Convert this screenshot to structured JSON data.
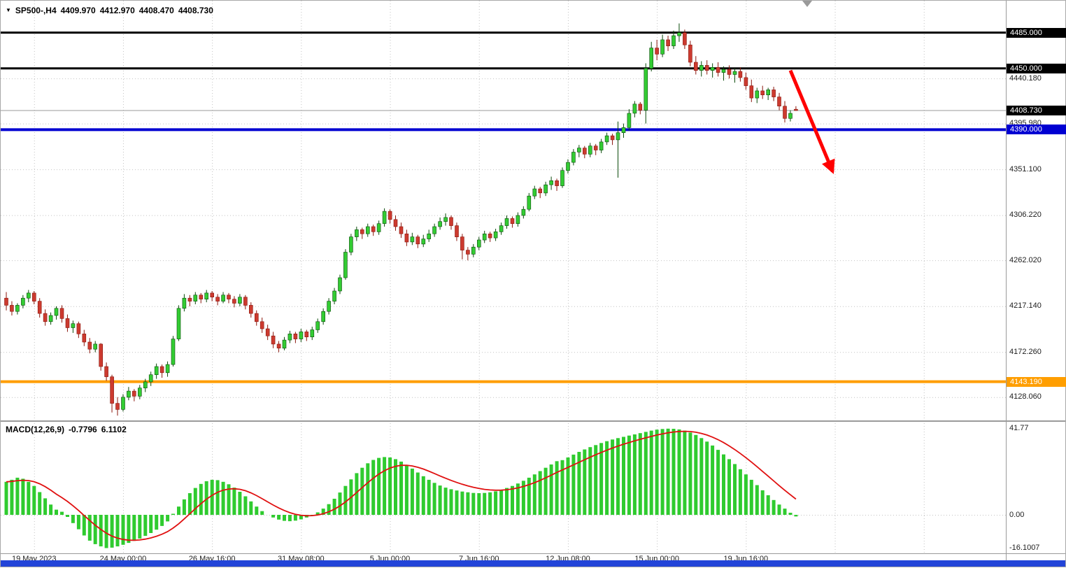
{
  "title": {
    "dropdown_icon": "▼",
    "symbol": "SP500-,H4",
    "open": "4409.970",
    "high": "4412.970",
    "low": "4408.470",
    "close": "4408.730"
  },
  "macd_header": {
    "name": "MACD(12,26,9)",
    "value": "-0.7796",
    "signal_value": "6.1102"
  },
  "colors": {
    "bull_fill": "#33CC33",
    "bull_stroke": "#0a4a0a",
    "bear_fill": "#CC3A2F",
    "bear_stroke": "#8b170e",
    "macd_hist": "#2FCB2F",
    "macd_signal": "#E01010",
    "grid": "#c2c2c2",
    "arrow": "#FF0000",
    "current_price_line": "#999999",
    "taskbar": "#2244D8",
    "axis_text": "#1c1c1c"
  },
  "chart_data": {
    "type": "candlestick",
    "symbol": "SP500-",
    "timeframe": "H4",
    "title": "SP500-,H4 4409.970 4412.970 4408.470 4408.730",
    "current_price": 4408.73,
    "levels": [
      {
        "price": 4485.0,
        "color": "#000000",
        "width": 3
      },
      {
        "price": 4450.0,
        "color": "#000000",
        "width": 3
      },
      {
        "price": 4390.0,
        "color": "#0000D2",
        "width": 4
      },
      {
        "price": 4143.19,
        "color": "#FF9E00",
        "width": 4
      }
    ],
    "price_axis": {
      "grid_labels": [
        {
          "label": "4440.180",
          "price": 4440.18
        },
        {
          "label": "4395.980",
          "price": 4395.98
        },
        {
          "label": "4351.100",
          "price": 4351.1
        },
        {
          "label": "4306.220",
          "price": 4306.22
        },
        {
          "label": "4262.020",
          "price": 4262.02
        },
        {
          "label": "4217.140",
          "price": 4217.14
        },
        {
          "label": "4172.260",
          "price": 4172.26
        },
        {
          "label": "4128.060",
          "price": 4128.06
        }
      ],
      "tags": [
        {
          "label": "4485.000",
          "price": 4485.0,
          "bg": "#000000"
        },
        {
          "label": "4450.000",
          "price": 4450.0,
          "bg": "#000000"
        },
        {
          "label": "4408.730",
          "price": 4408.73,
          "bg": "#000000"
        },
        {
          "label": "4390.000",
          "price": 4390.0,
          "bg": "#0000D2"
        },
        {
          "label": "4143.190",
          "price": 4143.19,
          "bg": "#FF9E00"
        }
      ]
    },
    "time_axis": {
      "labels": [
        {
          "label": "19 May 2023",
          "bar": 5
        },
        {
          "label": "24 May 00:00",
          "bar": 21
        },
        {
          "label": "26 May 16:00",
          "bar": 37
        },
        {
          "label": "31 May 08:00",
          "bar": 53
        },
        {
          "label": "5 Jun 00:00",
          "bar": 69
        },
        {
          "label": "7 Jun 16:00",
          "bar": 85
        },
        {
          "label": "12 Jun 08:00",
          "bar": 101
        },
        {
          "label": "15 Jun 00:00",
          "bar": 117
        },
        {
          "label": "19 Jun 16:00",
          "bar": 133
        }
      ]
    },
    "extra_gridline_bars": [
      149,
      165
    ],
    "macd_axis": {
      "labels": [
        {
          "label": "41.77",
          "value": 41.77
        },
        {
          "label": "0.00",
          "value": 0
        },
        {
          "label": "-16.1007",
          "value": -16.1007
        }
      ]
    },
    "trend_arrow": {
      "from_bar": 141,
      "from_price": 4448,
      "to_bar": 148.6,
      "to_price": 4349
    },
    "candles": [
      [
        4225,
        4231,
        4213,
        4218
      ],
      [
        4218,
        4222,
        4208,
        4212
      ],
      [
        4212,
        4220,
        4209,
        4218
      ],
      [
        4218,
        4228,
        4215,
        4225
      ],
      [
        4225,
        4233,
        4221,
        4230
      ],
      [
        4230,
        4232,
        4219,
        4222
      ],
      [
        4222,
        4225,
        4206,
        4210
      ],
      [
        4210,
        4214,
        4198,
        4202
      ],
      [
        4202,
        4211,
        4199,
        4208
      ],
      [
        4208,
        4217,
        4204,
        4215
      ],
      [
        4215,
        4218,
        4201,
        4205
      ],
      [
        4205,
        4209,
        4192,
        4196
      ],
      [
        4196,
        4203,
        4191,
        4200
      ],
      [
        4200,
        4202,
        4186,
        4190
      ],
      [
        4190,
        4194,
        4178,
        4182
      ],
      [
        4182,
        4186,
        4171,
        4175
      ],
      [
        4175,
        4183,
        4172,
        4180
      ],
      [
        4180,
        4181,
        4154,
        4158
      ],
      [
        4158,
        4162,
        4144,
        4148
      ],
      [
        4148,
        4150,
        4113,
        4122
      ],
      [
        4122,
        4128,
        4110,
        4116
      ],
      [
        4116,
        4131,
        4114,
        4128
      ],
      [
        4128,
        4138,
        4125,
        4134
      ],
      [
        4134,
        4136,
        4124,
        4129
      ],
      [
        4129,
        4140,
        4126,
        4137
      ],
      [
        4137,
        4146,
        4133,
        4143
      ],
      [
        4143,
        4153,
        4139,
        4150
      ],
      [
        4150,
        4161,
        4146,
        4158
      ],
      [
        4158,
        4160,
        4147,
        4152
      ],
      [
        4152,
        4163,
        4148,
        4160
      ],
      [
        4160,
        4188,
        4158,
        4185
      ],
      [
        4185,
        4218,
        4183,
        4215
      ],
      [
        4215,
        4229,
        4212,
        4225
      ],
      [
        4225,
        4228,
        4217,
        4222
      ],
      [
        4222,
        4231,
        4219,
        4228
      ],
      [
        4228,
        4230,
        4220,
        4224
      ],
      [
        4224,
        4233,
        4221,
        4230
      ],
      [
        4230,
        4232,
        4222,
        4226
      ],
      [
        4226,
        4229,
        4218,
        4222
      ],
      [
        4222,
        4231,
        4220,
        4228
      ],
      [
        4228,
        4230,
        4220,
        4224
      ],
      [
        4224,
        4227,
        4216,
        4220
      ],
      [
        4220,
        4229,
        4217,
        4226
      ],
      [
        4226,
        4228,
        4214,
        4218
      ],
      [
        4218,
        4221,
        4206,
        4210
      ],
      [
        4210,
        4213,
        4198,
        4202
      ],
      [
        4202,
        4206,
        4191,
        4195
      ],
      [
        4195,
        4199,
        4184,
        4188
      ],
      [
        4188,
        4192,
        4176,
        4180
      ],
      [
        4180,
        4183,
        4172,
        4176
      ],
      [
        4176,
        4187,
        4174,
        4184
      ],
      [
        4184,
        4193,
        4181,
        4190
      ],
      [
        4190,
        4192,
        4181,
        4185
      ],
      [
        4185,
        4195,
        4182,
        4192
      ],
      [
        4192,
        4194,
        4183,
        4187
      ],
      [
        4187,
        4197,
        4184,
        4194
      ],
      [
        4194,
        4205,
        4191,
        4202
      ],
      [
        4202,
        4215,
        4199,
        4212
      ],
      [
        4212,
        4225,
        4209,
        4222
      ],
      [
        4222,
        4235,
        4219,
        4232
      ],
      [
        4232,
        4248,
        4229,
        4245
      ],
      [
        4245,
        4273,
        4243,
        4270
      ],
      [
        4270,
        4288,
        4267,
        4285
      ],
      [
        4285,
        4295,
        4281,
        4292
      ],
      [
        4292,
        4294,
        4283,
        4288
      ],
      [
        4288,
        4298,
        4285,
        4295
      ],
      [
        4295,
        4297,
        4286,
        4290
      ],
      [
        4290,
        4301,
        4287,
        4298
      ],
      [
        4298,
        4313,
        4295,
        4310
      ],
      [
        4310,
        4312,
        4298,
        4302
      ],
      [
        4302,
        4306,
        4291,
        4295
      ],
      [
        4295,
        4299,
        4284,
        4288
      ],
      [
        4288,
        4292,
        4276,
        4280
      ],
      [
        4280,
        4289,
        4277,
        4285
      ],
      [
        4285,
        4287,
        4274,
        4278
      ],
      [
        4278,
        4287,
        4275,
        4283
      ],
      [
        4283,
        4292,
        4280,
        4288
      ],
      [
        4288,
        4298,
        4285,
        4295
      ],
      [
        4295,
        4304,
        4292,
        4300
      ],
      [
        4300,
        4308,
        4296,
        4304
      ],
      [
        4304,
        4306,
        4292,
        4296
      ],
      [
        4296,
        4299,
        4281,
        4285
      ],
      [
        4285,
        4288,
        4263,
        4272
      ],
      [
        4272,
        4275,
        4262,
        4268
      ],
      [
        4268,
        4278,
        4265,
        4275
      ],
      [
        4275,
        4285,
        4272,
        4282
      ],
      [
        4282,
        4291,
        4279,
        4288
      ],
      [
        4288,
        4290,
        4280,
        4284
      ],
      [
        4284,
        4293,
        4281,
        4290
      ],
      [
        4290,
        4299,
        4287,
        4296
      ],
      [
        4296,
        4306,
        4293,
        4303
      ],
      [
        4303,
        4305,
        4294,
        4298
      ],
      [
        4298,
        4309,
        4295,
        4306
      ],
      [
        4306,
        4315,
        4303,
        4312
      ],
      [
        4312,
        4328,
        4310,
        4325
      ],
      [
        4325,
        4335,
        4322,
        4332
      ],
      [
        4332,
        4334,
        4323,
        4328
      ],
      [
        4328,
        4339,
        4325,
        4336
      ],
      [
        4336,
        4344,
        4331,
        4340
      ],
      [
        4340,
        4342,
        4330,
        4335
      ],
      [
        4335,
        4353,
        4333,
        4350
      ],
      [
        4350,
        4361,
        4347,
        4358
      ],
      [
        4358,
        4371,
        4355,
        4368
      ],
      [
        4368,
        4375,
        4363,
        4372
      ],
      [
        4372,
        4374,
        4362,
        4366
      ],
      [
        4366,
        4377,
        4363,
        4374
      ],
      [
        4374,
        4376,
        4365,
        4370
      ],
      [
        4370,
        4381,
        4367,
        4378
      ],
      [
        4378,
        4387,
        4375,
        4384
      ],
      [
        4384,
        4386,
        4375,
        4380
      ],
      [
        4380,
        4398,
        4343,
        4387
      ],
      [
        4387,
        4396,
        4382,
        4392
      ],
      [
        4392,
        4410,
        4389,
        4406
      ],
      [
        4406,
        4418,
        4402,
        4415
      ],
      [
        4415,
        4417,
        4405,
        4409
      ],
      [
        4409,
        4455,
        4396,
        4450
      ],
      [
        4450,
        4476,
        4447,
        4470
      ],
      [
        4470,
        4478,
        4458,
        4464
      ],
      [
        4464,
        4483,
        4461,
        4478
      ],
      [
        4478,
        4482,
        4467,
        4472
      ],
      [
        4472,
        4487,
        4469,
        4482
      ],
      [
        4482,
        4494,
        4476,
        4485
      ],
      [
        4485,
        4488,
        4469,
        4473
      ],
      [
        4473,
        4477,
        4452,
        4456
      ],
      [
        4456,
        4462,
        4444,
        4448
      ],
      [
        4448,
        4457,
        4442,
        4453
      ],
      [
        4453,
        4458,
        4444,
        4448
      ],
      [
        4448,
        4455,
        4441,
        4451
      ],
      [
        4451,
        4456,
        4442,
        4446
      ],
      [
        4446,
        4452,
        4438,
        4449
      ],
      [
        4449,
        4453,
        4440,
        4444
      ],
      [
        4444,
        4450,
        4436,
        4447
      ],
      [
        4447,
        4451,
        4437,
        4441
      ],
      [
        4441,
        4446,
        4429,
        4433
      ],
      [
        4433,
        4439,
        4417,
        4421
      ],
      [
        4421,
        4431,
        4416,
        4428
      ],
      [
        4428,
        4433,
        4420,
        4424
      ],
      [
        4424,
        4431,
        4419,
        4429
      ],
      [
        4429,
        4432,
        4418,
        4422
      ],
      [
        4422,
        4426,
        4409,
        4413
      ],
      [
        4413,
        4418,
        4397,
        4401
      ],
      [
        4401,
        4409,
        4398,
        4406
      ],
      [
        4409.97,
        4412.97,
        4408.47,
        4408.73
      ]
    ],
    "macd": {
      "params": "12,26,9",
      "signal_period": 9,
      "last": -0.7796,
      "signal_last": 6.1102,
      "max": 41.77,
      "min": -16.1007,
      "hist": [
        16,
        17,
        18,
        17.5,
        16,
        14,
        11,
        8,
        5,
        2.5,
        1.5,
        -1,
        -4,
        -7,
        -10,
        -12.5,
        -14.2,
        -15.3,
        -16.1,
        -15.9,
        -15.3,
        -14.5,
        -13.6,
        -12.6,
        -11.5,
        -10.2,
        -8.8,
        -7.2,
        -5.4,
        -3.2,
        0.5,
        4,
        7.5,
        10.5,
        13,
        15,
        16.3,
        17,
        16.8,
        16,
        14.8,
        13.2,
        11.2,
        9,
        6.5,
        4,
        1.8,
        0,
        -1.3,
        -2.3,
        -2.9,
        -3.1,
        -2.8,
        -2.2,
        -1.3,
        -0.2,
        1.2,
        3,
        5.2,
        7.8,
        10.8,
        14,
        17.2,
        20.2,
        22.8,
        25,
        26.6,
        27.6,
        28,
        27.8,
        27,
        25.8,
        24.2,
        22.4,
        20.5,
        18.7,
        17,
        15.5,
        14.2,
        13.2,
        12.4,
        11.8,
        11.3,
        10.9,
        10.6,
        10.5,
        10.6,
        10.9,
        11.4,
        12.1,
        13,
        14,
        15.2,
        16.5,
        18,
        19.6,
        21.2,
        22.8,
        24.4,
        26,
        26.5,
        27.8,
        29.2,
        30.5,
        31.7,
        32.8,
        33.8,
        34.8,
        35.7,
        36.5,
        37.2,
        37.8,
        38.4,
        39,
        39.6,
        40.2,
        40.8,
        41.3,
        41.6,
        41.77,
        41.7,
        41.4,
        40.8,
        39.9,
        38.7,
        37.2,
        35.5,
        33.6,
        31.5,
        29.3,
        27,
        24.6,
        22.1,
        19.6,
        17,
        14.4,
        11.9,
        9.5,
        7.2,
        5,
        3,
        1,
        -0.7796
      ]
    }
  }
}
